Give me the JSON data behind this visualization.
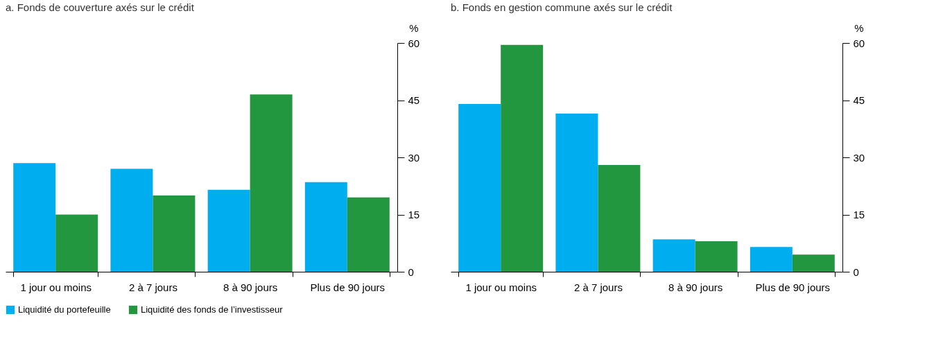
{
  "chart_data": [
    {
      "type": "bar",
      "title": "a. Fonds de couverture axés sur le crédit",
      "ylabel": "%",
      "categories": [
        "1 jour ou moins",
        "2 à 7 jours",
        "8 à 90 jours",
        "Plus de 90 jours"
      ],
      "series": [
        {
          "name": "Liquidité du portefeuille",
          "color": "#00aeef",
          "values": [
            28.5,
            27,
            21.5,
            23.5
          ]
        },
        {
          "name": "Liquidité des fonds de l’investisseur",
          "color": "#23973f",
          "values": [
            15,
            20,
            46.5,
            19.5
          ]
        }
      ],
      "ylim": [
        0,
        60
      ],
      "yticks": [
        0,
        15,
        30,
        45,
        60
      ],
      "grid": false,
      "legend": "bottom left"
    },
    {
      "type": "bar",
      "title": "b. Fonds en gestion commune axés sur le crédit",
      "ylabel": "%",
      "categories": [
        "1 jour ou moins",
        "2 à 7 jours",
        "8 à 90 jours",
        "Plus de 90 jours"
      ],
      "series": [
        {
          "name": "Liquidité du portefeuille",
          "color": "#00aeef",
          "values": [
            44,
            41.5,
            8.5,
            6.5
          ]
        },
        {
          "name": "Liquidité des fonds de l’investisseur",
          "color": "#23973f",
          "values": [
            59.5,
            28,
            8,
            4.5
          ]
        }
      ],
      "ylim": [
        0,
        60
      ],
      "yticks": [
        0,
        15,
        30,
        45,
        60
      ],
      "grid": false,
      "legend": "bottom left"
    }
  ]
}
